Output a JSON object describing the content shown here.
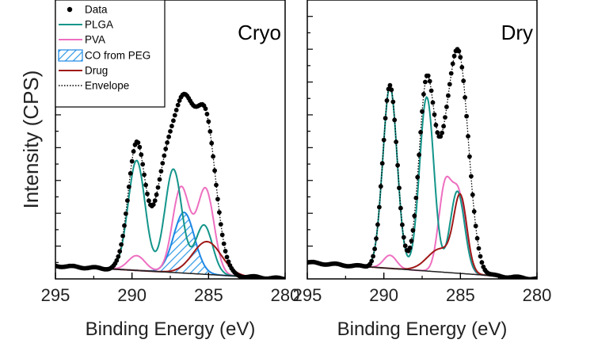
{
  "figure": {
    "ylabel": "Intensity (CPS)"
  },
  "legend": {
    "placement": "top-left of left panel",
    "entries": [
      {
        "label": "Data",
        "style": "dot",
        "color": "#000000"
      },
      {
        "label": "PLGA",
        "style": "line",
        "color": "#13958a"
      },
      {
        "label": "PVA",
        "style": "line",
        "color": "#ee6fc0"
      },
      {
        "label": "CO from PEG",
        "style": "hatched",
        "color": "#1e88e5"
      },
      {
        "label": "Drug",
        "style": "line",
        "color": "#a01919"
      },
      {
        "label": "Envelope",
        "style": "dotted",
        "color": "#000000"
      }
    ]
  },
  "chart_data": [
    {
      "type": "line",
      "title": "Cryo",
      "xlabel": "Binding Energy (eV)",
      "ylabel": "Intensity (CPS)",
      "xlim": [
        295,
        280
      ],
      "ylim": [
        0,
        170
      ],
      "xticks": [
        295,
        290,
        285,
        280
      ],
      "tick_labels": [
        "295",
        "290",
        "285",
        "280"
      ],
      "baseline": {
        "x": [
          295,
          280
        ],
        "y": [
          8,
          0
        ]
      },
      "components": [
        {
          "name": "PLGA",
          "color": "#13958a",
          "peaks": [
            {
              "center": 289.7,
              "height": 67,
              "fwhm": 1.3
            },
            {
              "center": 287.3,
              "height": 63,
              "fwhm": 1.3
            },
            {
              "center": 285.3,
              "height": 30,
              "fwhm": 1.3
            }
          ]
        },
        {
          "name": "PVA",
          "color": "#ee6fc0",
          "peaks": [
            {
              "center": 289.7,
              "height": 9,
              "fwhm": 1.3
            },
            {
              "center": 286.8,
              "height": 52,
              "fwhm": 1.3
            },
            {
              "center": 285.2,
              "height": 52,
              "fwhm": 1.3
            }
          ]
        },
        {
          "name": "CO from PEG",
          "color": "#1e88e5",
          "peaks": [
            {
              "center": 286.6,
              "height": 37,
              "fwhm": 1.6
            }
          ]
        },
        {
          "name": "Drug",
          "color": "#a01919",
          "peaks": [
            {
              "center": 285.1,
              "height": 20,
              "fwhm": 2.2
            }
          ]
        }
      ],
      "envelope": {
        "name": "Envelope",
        "peaks": [
          {
            "center": 289.7,
            "height": 77,
            "fwhm": 1.3
          },
          {
            "center": 287.8,
            "height": 60,
            "fwhm": 1.6
          },
          {
            "center": 286.6,
            "height": 85,
            "fwhm": 1.5
          },
          {
            "center": 285.2,
            "height": 93,
            "fwhm": 1.6
          }
        ]
      }
    },
    {
      "type": "line",
      "title": "Dry",
      "xlabel": "Binding Energy (eV)",
      "ylabel": "",
      "xlim": [
        295,
        280
      ],
      "ylim": [
        0,
        170
      ],
      "xticks": [
        295,
        290,
        285,
        280
      ],
      "tick_labels": [
        "295",
        "290",
        "285",
        "280"
      ],
      "baseline": {
        "x": [
          295,
          280
        ],
        "y": [
          10,
          0
        ]
      },
      "components": [
        {
          "name": "PLGA",
          "color": "#13958a",
          "peaks": [
            {
              "center": 289.6,
              "height": 111,
              "fwhm": 1.1
            },
            {
              "center": 287.2,
              "height": 106,
              "fwhm": 1.1
            },
            {
              "center": 285.2,
              "height": 50,
              "fwhm": 1.1
            }
          ]
        },
        {
          "name": "PVA",
          "color": "#ee6fc0",
          "peaks": [
            {
              "center": 289.6,
              "height": 8,
              "fwhm": 1.0
            },
            {
              "center": 286.0,
              "height": 52,
              "fwhm": 1.0
            },
            {
              "center": 285.1,
              "height": 46,
              "fwhm": 1.0
            }
          ]
        },
        {
          "name": "Drug",
          "color": "#a01919",
          "peaks": [
            {
              "center": 285.0,
              "height": 44,
              "fwhm": 1.0
            },
            {
              "center": 286.3,
              "height": 14,
              "fwhm": 2.0
            }
          ]
        }
      ],
      "envelope": {
        "name": "Envelope",
        "peaks": [
          {
            "center": 289.6,
            "height": 112,
            "fwhm": 1.1
          },
          {
            "center": 287.2,
            "height": 114,
            "fwhm": 1.2
          },
          {
            "center": 285.1,
            "height": 130,
            "fwhm": 1.5
          },
          {
            "center": 286.1,
            "height": 40,
            "fwhm": 1.2
          }
        ]
      }
    }
  ]
}
